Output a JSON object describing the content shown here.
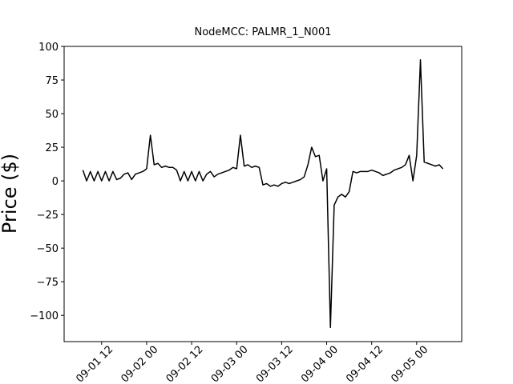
{
  "chart_data": {
    "type": "line",
    "title": "NodeMCC: PALMR_1_N001",
    "y_label": "Price ($)",
    "x": [
      "09-01 07",
      "09-01 08",
      "09-01 09",
      "09-01 10",
      "09-01 11",
      "09-01 12",
      "09-01 13",
      "09-01 14",
      "09-01 15",
      "09-01 16",
      "09-01 17",
      "09-01 18",
      "09-01 19",
      "09-01 20",
      "09-01 21",
      "09-01 22",
      "09-01 23",
      "09-02 00",
      "09-02 01",
      "09-02 02",
      "09-02 03",
      "09-02 04",
      "09-02 05",
      "09-02 06",
      "09-02 07",
      "09-02 08",
      "09-02 09",
      "09-02 10",
      "09-02 11",
      "09-02 12",
      "09-02 13",
      "09-02 14",
      "09-02 15",
      "09-02 16",
      "09-02 17",
      "09-02 18",
      "09-02 19",
      "09-02 20",
      "09-02 21",
      "09-02 22",
      "09-02 23",
      "09-03 00",
      "09-03 01",
      "09-03 02",
      "09-03 03",
      "09-03 04",
      "09-03 05",
      "09-03 06",
      "09-03 07",
      "09-03 08",
      "09-03 09",
      "09-03 10",
      "09-03 11",
      "09-03 12",
      "09-03 13",
      "09-03 14",
      "09-03 15",
      "09-03 16",
      "09-03 17",
      "09-03 18",
      "09-03 19",
      "09-03 20",
      "09-03 21",
      "09-03 22",
      "09-03 23",
      "09-04 00",
      "09-04 01",
      "09-04 02",
      "09-04 03",
      "09-04 04",
      "09-04 05",
      "09-04 06",
      "09-04 07",
      "09-04 08",
      "09-04 09",
      "09-04 10",
      "09-04 11",
      "09-04 12",
      "09-04 13",
      "09-04 14",
      "09-04 15",
      "09-04 16",
      "09-04 17",
      "09-04 18",
      "09-04 19",
      "09-04 20",
      "09-04 21",
      "09-04 22",
      "09-04 23",
      "09-05 00",
      "09-05 01",
      "09-05 02",
      "09-05 03",
      "09-05 04",
      "09-05 05",
      "09-05 06",
      "09-05 07"
    ],
    "series": [
      {
        "name": "PALMR_1_N001",
        "color": "#000000",
        "values": [
          8,
          0,
          7,
          0,
          7,
          0,
          7,
          0,
          7,
          1,
          2,
          5,
          6,
          1,
          5,
          6,
          7,
          9,
          34,
          12,
          13,
          10,
          11,
          10,
          10,
          8,
          0,
          7,
          0,
          7,
          0,
          7,
          0,
          5,
          7,
          3,
          5,
          6,
          7,
          8,
          10,
          9,
          34,
          11,
          12,
          10,
          11,
          10,
          -3,
          -2,
          -4,
          -3,
          -4,
          -2,
          -1,
          -2,
          -1,
          0,
          1,
          3,
          12,
          25,
          18,
          19,
          0,
          9,
          -109,
          -18,
          -12,
          -10,
          -12,
          -8,
          7,
          6,
          7,
          7,
          7,
          8,
          7,
          6,
          4,
          5,
          6,
          8,
          9,
          10,
          12,
          19,
          0,
          19,
          90,
          14,
          13,
          12,
          11,
          12,
          9
        ]
      }
    ],
    "xlim": [
      "09-01 02",
      "09-05 12"
    ],
    "xticks": [
      "09-01 12",
      "09-02 00",
      "09-02 12",
      "09-03 00",
      "09-03 12",
      "09-04 00",
      "09-04 12",
      "09-05 00"
    ],
    "ylim": [
      -119.5,
      100
    ],
    "yticks": [
      {
        "value": -100,
        "label": "−100"
      },
      {
        "value": -75,
        "label": "−75"
      },
      {
        "value": -50,
        "label": "−50"
      },
      {
        "value": -25,
        "label": "−25"
      },
      0,
      25,
      50,
      75,
      100
    ]
  }
}
